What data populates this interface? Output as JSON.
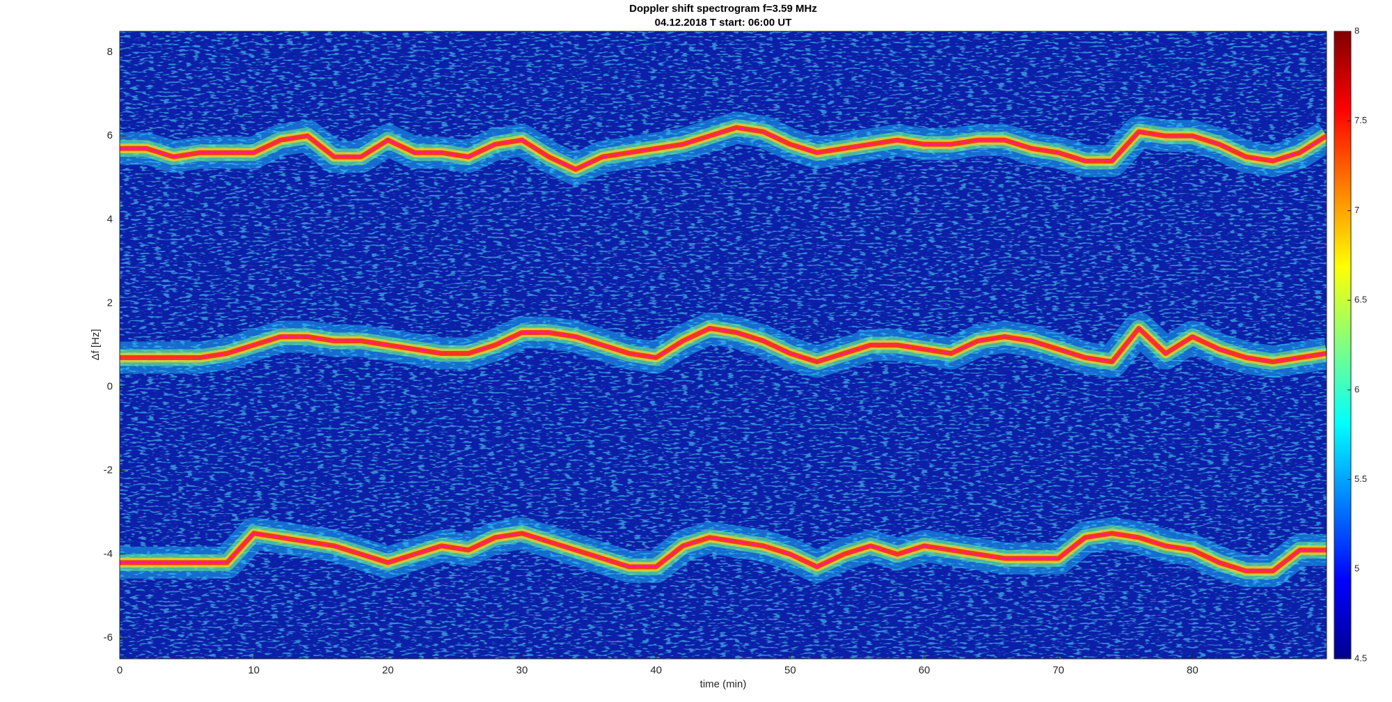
{
  "chart_data": {
    "type": "spectrogram",
    "title": "Doppler shift spectrogram f=3.59 MHz",
    "subtitle": "04.12.2018   T start: 06:00 UT",
    "xlabel": "time (min)",
    "ylabel": "Δf [Hz]",
    "xlim": [
      0,
      90
    ],
    "xticks": [
      0,
      10,
      20,
      30,
      40,
      50,
      60,
      70,
      80
    ],
    "ylim": [
      -6.5,
      8.5
    ],
    "yticks": [
      -6,
      -4,
      -2,
      0,
      2,
      4,
      6,
      8
    ],
    "clim": [
      4.5,
      8
    ],
    "cticks": [
      4.5,
      5,
      5.5,
      6,
      6.5,
      7,
      7.5,
      8
    ],
    "colormap": "jet",
    "x": [
      0,
      2,
      4,
      6,
      8,
      10,
      12,
      14,
      16,
      18,
      20,
      22,
      24,
      26,
      28,
      30,
      32,
      34,
      36,
      38,
      40,
      42,
      44,
      46,
      48,
      50,
      52,
      54,
      56,
      58,
      60,
      62,
      64,
      66,
      68,
      70,
      72,
      74,
      76,
      78,
      80,
      82,
      84,
      86,
      88,
      90
    ],
    "series": [
      {
        "color": "#ff00ff",
        "values": [
          5.7,
          5.7,
          5.5,
          5.6,
          5.6,
          5.6,
          5.9,
          6.0,
          5.5,
          5.5,
          5.9,
          5.6,
          5.6,
          5.5,
          5.8,
          5.9,
          5.5,
          5.2,
          5.5,
          5.6,
          5.7,
          5.8,
          6.0,
          6.2,
          6.1,
          5.8,
          5.6,
          5.7,
          5.8,
          5.9,
          5.8,
          5.8,
          5.9,
          5.9,
          5.7,
          5.6,
          5.4,
          5.4,
          6.1,
          6.0,
          6.0,
          5.8,
          5.5,
          5.4,
          5.6,
          6.0
        ]
      },
      {
        "color": "#ff00ff",
        "values": [
          0.7,
          0.7,
          0.7,
          0.7,
          0.8,
          1.0,
          1.2,
          1.2,
          1.1,
          1.1,
          1.0,
          0.9,
          0.8,
          0.8,
          1.0,
          1.3,
          1.3,
          1.2,
          1.0,
          0.8,
          0.7,
          1.1,
          1.4,
          1.3,
          1.1,
          0.8,
          0.6,
          0.8,
          1.0,
          1.0,
          0.9,
          0.8,
          1.1,
          1.2,
          1.1,
          0.9,
          0.7,
          0.6,
          1.4,
          0.8,
          1.2,
          0.9,
          0.7,
          0.6,
          0.7,
          0.8
        ]
      },
      {
        "color": "#ff00ff",
        "values": [
          -4.2,
          -4.2,
          -4.2,
          -4.2,
          -4.2,
          -3.5,
          -3.6,
          -3.7,
          -3.8,
          -4.0,
          -4.2,
          -4.0,
          -3.8,
          -3.9,
          -3.6,
          -3.5,
          -3.7,
          -3.9,
          -4.1,
          -4.3,
          -4.3,
          -3.8,
          -3.6,
          -3.7,
          -3.8,
          -4.0,
          -4.3,
          -4.0,
          -3.8,
          -4.0,
          -3.8,
          -3.9,
          -4.0,
          -4.1,
          -4.1,
          -4.1,
          -3.6,
          -3.5,
          -3.6,
          -3.8,
          -3.9,
          -4.2,
          -4.4,
          -4.4,
          -3.9,
          -3.9
        ]
      }
    ]
  }
}
